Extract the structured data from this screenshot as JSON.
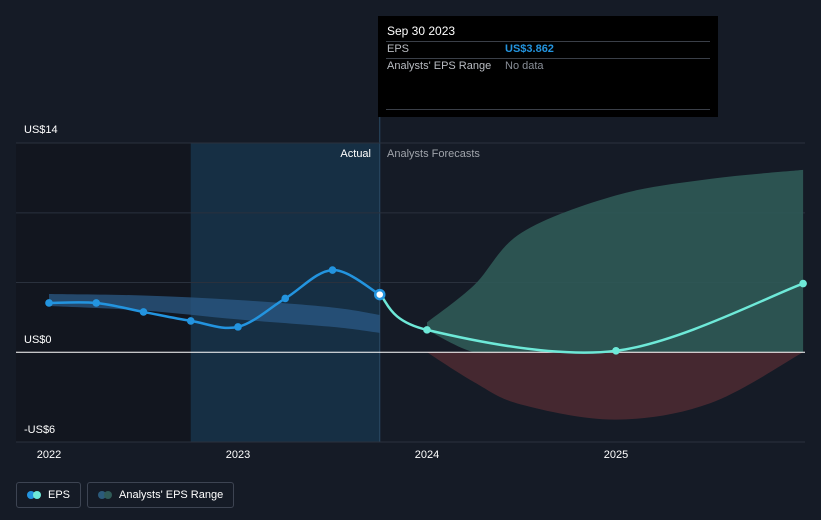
{
  "tooltip": {
    "date": "Sep 30 2023",
    "eps_label": "EPS",
    "eps_value": "US$3.862",
    "range_label": "Analysts' EPS Range",
    "range_value": "No data"
  },
  "sections": {
    "actual": "Actual",
    "forecast": "Analysts Forecasts"
  },
  "legend": {
    "eps": "EPS",
    "range": "Analysts' EPS Range"
  },
  "colors": {
    "background": "#151b26",
    "eps_actual": "#2394df",
    "eps_forecast": "#6ee9d8",
    "range_positive": "#2f5a57",
    "range_negative": "#4a2a32",
    "highlight": "#16324a",
    "tooltip_value": "#2394df"
  },
  "chart_data": {
    "type": "line",
    "ylim": [
      -6,
      14
    ],
    "yticks": [
      {
        "value": 14,
        "label": "US$14"
      },
      {
        "value": 0,
        "label": "US$0"
      },
      {
        "value": -6,
        "label": "-US$6"
      }
    ],
    "xticks": [
      {
        "value": 2022.0,
        "label": "2022"
      },
      {
        "value": 2023.0,
        "label": "2023"
      },
      {
        "value": 2024.0,
        "label": "2024"
      },
      {
        "value": 2025.0,
        "label": "2025"
      }
    ],
    "xlim": [
      2021.83,
      2025.99
    ],
    "actual_end": 2023.75,
    "highlight_start": 2022.75,
    "series": [
      {
        "name": "EPS",
        "kind": "actual",
        "x": [
          2022.0,
          2022.25,
          2022.5,
          2022.75,
          2023.0,
          2023.25,
          2023.5,
          2023.75
        ],
        "y": [
          3.3,
          3.3,
          2.7,
          2.1,
          1.7,
          3.6,
          5.5,
          3.862
        ]
      },
      {
        "name": "EPS",
        "kind": "forecast",
        "x": [
          2023.75,
          2024.0,
          2025.0,
          2025.99
        ],
        "y": [
          3.862,
          1.5,
          0.1,
          4.6
        ]
      }
    ],
    "band_actual": {
      "x": [
        2022.0,
        2022.5,
        2023.0,
        2023.5,
        2023.75
      ],
      "upper": [
        3.9,
        3.8,
        3.5,
        3.0,
        2.5
      ],
      "lower": [
        3.1,
        2.8,
        2.2,
        1.7,
        1.3
      ]
    },
    "band_forecast": {
      "x": [
        2024.0,
        2024.25,
        2024.5,
        2025.0,
        2025.5,
        2025.99
      ],
      "upper": [
        2.0,
        4.5,
        8.0,
        10.5,
        11.6,
        12.2
      ],
      "lower": [
        1.5,
        -2.0,
        -3.5,
        -4.5,
        -3.4,
        0.0
      ]
    }
  }
}
